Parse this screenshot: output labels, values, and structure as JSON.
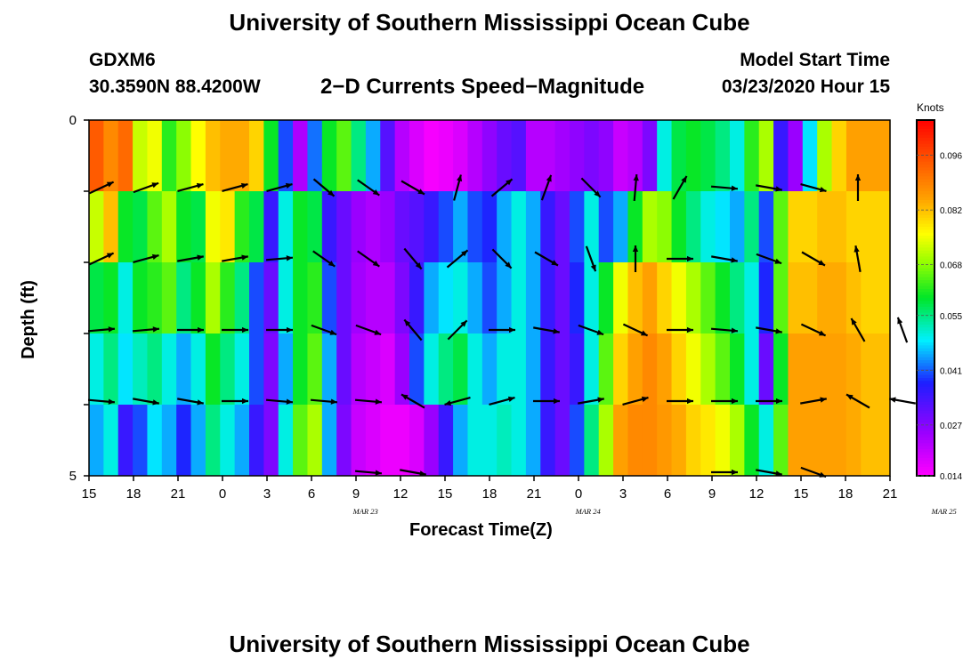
{
  "header": {
    "title": "University of Southern Mississippi Ocean Cube",
    "station": "GDXM6",
    "coords": "30.3590N 88.4200W",
    "subtitle": "2−D Currents Speed−Magnitude",
    "start_label": "Model Start Time",
    "start_value": "03/23/2020 Hour 15"
  },
  "footer": {
    "title": "University of Southern Mississippi Ocean Cube"
  },
  "colorbar": {
    "units": "Knots",
    "ticks": [
      "0.096",
      "0.082",
      "0.068",
      "0.055",
      "0.041",
      "0.027",
      "0.014"
    ]
  },
  "chart_data": {
    "type": "heatmap",
    "xlabel": "Forecast Time(Z)",
    "ylabel": "Depth (ft)",
    "ylim": [
      5,
      0
    ],
    "y_ticks": [
      "0",
      "5"
    ],
    "x_ticks": [
      "15",
      "18",
      "21",
      "0",
      "3",
      "6",
      "9",
      "12",
      "15",
      "18",
      "21",
      "0",
      "3",
      "6",
      "9",
      "12",
      "15",
      "18",
      "21"
    ],
    "dates": [
      {
        "label": "MAR  23",
        "hour": 21
      },
      {
        "label": "MAR  24",
        "hour": 36
      },
      {
        "label": "MAR  25",
        "hour": 60
      }
    ],
    "hours_range": [
      0,
      54
    ],
    "speed_range": [
      0.014,
      0.105
    ],
    "surface_speed": [
      0.094,
      0.088,
      0.092,
      0.072,
      0.075,
      0.062,
      0.068,
      0.076,
      0.082,
      0.084,
      0.084,
      0.08,
      0.06,
      0.04,
      0.023,
      0.042,
      0.06,
      0.065,
      0.055,
      0.045,
      0.032,
      0.022,
      0.018,
      0.015,
      0.016,
      0.018,
      0.022,
      0.026,
      0.03,
      0.032,
      0.022,
      0.022,
      0.024,
      0.026,
      0.028,
      0.026,
      0.02,
      0.022,
      0.028,
      0.05,
      0.058,
      0.06,
      0.058,
      0.055,
      0.05,
      0.062,
      0.07,
      0.035,
      0.025,
      0.048,
      0.07,
      0.08,
      0.085,
      0.085,
      0.085
    ],
    "depth_layers": [
      {
        "depth": 1,
        "values": [
          0.085,
          0.09,
          0.065,
          0.058,
          0.065,
          0.076,
          0.07,
          0.072,
          0.08,
          0.08,
          0.068,
          0.05,
          0.03,
          0.058,
          0.06,
          0.055,
          0.035,
          0.03,
          0.024,
          0.022,
          0.022,
          0.025,
          0.03,
          0.04,
          0.038,
          0.03,
          0.028,
          0.04,
          0.045,
          0.042,
          0.035,
          0.03,
          0.032,
          0.04,
          0.038,
          0.028,
          0.03,
          0.045,
          0.058,
          0.06,
          0.065,
          0.065,
          0.06,
          0.055,
          0.05,
          0.048,
          0.04,
          0.06,
          0.075,
          0.075,
          0.08,
          0.082,
          0.082,
          0.08,
          0.08
        ]
      },
      {
        "depth": 2,
        "values": [
          0.072,
          0.082,
          0.06,
          0.058,
          0.065,
          0.07,
          0.06,
          0.058,
          0.075,
          0.078,
          0.062,
          0.058,
          0.035,
          0.05,
          0.06,
          0.058,
          0.035,
          0.03,
          0.025,
          0.023,
          0.025,
          0.03,
          0.032,
          0.035,
          0.04,
          0.045,
          0.04,
          0.038,
          0.045,
          0.05,
          0.045,
          0.035,
          0.03,
          0.04,
          0.05,
          0.04,
          0.045,
          0.06,
          0.07,
          0.068,
          0.06,
          0.055,
          0.05,
          0.048,
          0.045,
          0.055,
          0.04,
          0.065,
          0.08,
          0.08,
          0.082,
          0.082,
          0.08,
          0.08,
          0.08
        ]
      },
      {
        "depth": 3,
        "values": [
          0.058,
          0.06,
          0.05,
          0.06,
          0.062,
          0.065,
          0.055,
          0.06,
          0.07,
          0.062,
          0.055,
          0.04,
          0.03,
          0.05,
          0.06,
          0.062,
          0.04,
          0.03,
          0.024,
          0.022,
          0.022,
          0.028,
          0.035,
          0.045,
          0.048,
          0.05,
          0.045,
          0.04,
          0.045,
          0.05,
          0.045,
          0.035,
          0.03,
          0.038,
          0.05,
          0.06,
          0.075,
          0.082,
          0.085,
          0.08,
          0.075,
          0.07,
          0.065,
          0.06,
          0.055,
          0.05,
          0.038,
          0.065,
          0.082,
          0.082,
          0.084,
          0.084,
          0.082,
          0.08,
          0.08
        ]
      },
      {
        "depth": 4,
        "values": [
          0.05,
          0.055,
          0.048,
          0.052,
          0.055,
          0.05,
          0.045,
          0.05,
          0.06,
          0.055,
          0.05,
          0.04,
          0.028,
          0.045,
          0.06,
          0.065,
          0.045,
          0.03,
          0.022,
          0.02,
          0.018,
          0.025,
          0.04,
          0.05,
          0.055,
          0.058,
          0.05,
          0.045,
          0.05,
          0.05,
          0.045,
          0.035,
          0.03,
          0.035,
          0.05,
          0.065,
          0.08,
          0.085,
          0.088,
          0.085,
          0.08,
          0.075,
          0.07,
          0.065,
          0.06,
          0.05,
          0.03,
          0.06,
          0.085,
          0.085,
          0.085,
          0.085,
          0.084,
          0.082,
          0.082
        ]
      },
      {
        "depth": 5,
        "values": [
          0.045,
          0.05,
          0.035,
          0.04,
          0.048,
          0.045,
          0.038,
          0.045,
          0.055,
          0.05,
          0.045,
          0.035,
          0.028,
          0.05,
          0.065,
          0.07,
          0.045,
          0.028,
          0.02,
          0.018,
          0.016,
          0.016,
          0.018,
          0.025,
          0.035,
          0.045,
          0.05,
          0.05,
          0.052,
          0.05,
          0.045,
          0.035,
          0.03,
          0.04,
          0.055,
          0.07,
          0.085,
          0.088,
          0.088,
          0.086,
          0.084,
          0.08,
          0.078,
          0.075,
          0.07,
          0.06,
          0.05,
          0.065,
          0.085,
          0.085,
          0.085,
          0.085,
          0.084,
          0.082,
          0.082
        ]
      }
    ],
    "arrow_depths": [
      1,
      2,
      3,
      4,
      5
    ],
    "arrow_hours": [
      0,
      3,
      6,
      9,
      12,
      15,
      18,
      21,
      24,
      27,
      30,
      33,
      36,
      39,
      42,
      45,
      48,
      51,
      54
    ],
    "arrow_directions": [
      [
        65,
        70,
        75,
        75,
        75,
        130,
        125,
        120,
        15,
        50,
        20,
        135,
        5,
        30,
        95,
        100,
        105,
        0,
        null
      ],
      [
        65,
        75,
        80,
        80,
        85,
        125,
        125,
        140,
        50,
        135,
        120,
        160,
        0,
        90,
        100,
        110,
        120,
        350,
        null
      ],
      [
        85,
        85,
        90,
        90,
        90,
        110,
        110,
        320,
        45,
        90,
        100,
        110,
        115,
        90,
        95,
        100,
        115,
        330,
        340
      ],
      [
        95,
        100,
        100,
        90,
        95,
        95,
        95,
        300,
        255,
        75,
        90,
        80,
        75,
        90,
        90,
        90,
        80,
        300,
        280
      ],
      [
        null,
        null,
        null,
        null,
        null,
        null,
        95,
        100,
        null,
        null,
        null,
        null,
        null,
        null,
        90,
        100,
        110,
        null,
        null
      ]
    ]
  }
}
